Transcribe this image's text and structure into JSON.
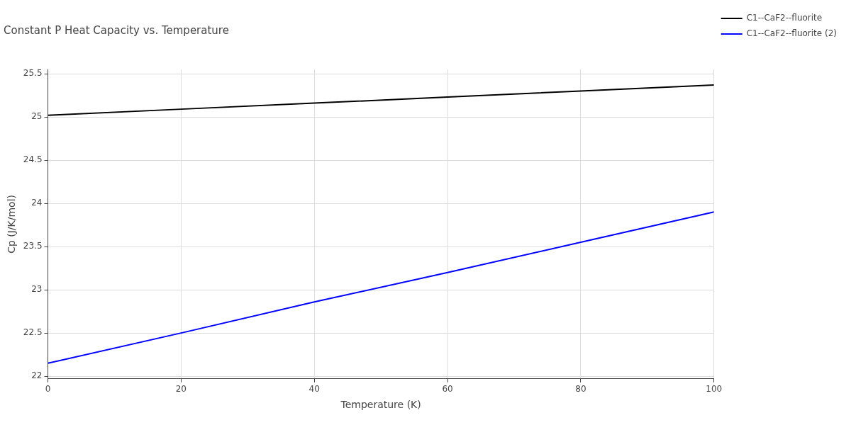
{
  "chart_data": {
    "type": "line",
    "title": "Constant P Heat Capacity vs. Temperature",
    "xlabel": "Temperature (K)",
    "ylabel": "Cp (J/K/mol)",
    "x": [
      0,
      20,
      40,
      60,
      80,
      100
    ],
    "series": [
      {
        "name": "C1--CaF2--fluorite",
        "color": "#000000",
        "values": [
          25.02,
          25.09,
          25.16,
          25.23,
          25.3,
          25.37
        ]
      },
      {
        "name": "C1--CaF2--fluorite (2)",
        "color": "#0000ff",
        "values": [
          22.15,
          22.5,
          22.86,
          23.2,
          23.55,
          23.9
        ]
      }
    ],
    "xlim": [
      0,
      100
    ],
    "xticks": [
      0,
      20,
      40,
      60,
      80,
      100
    ],
    "ylim": [
      21.97,
      25.55
    ],
    "yticks": [
      22,
      22.5,
      23,
      23.5,
      24,
      24.5,
      25,
      25.5
    ],
    "grid": true,
    "legend": "top right",
    "marker": "none",
    "line_style": "solid"
  }
}
